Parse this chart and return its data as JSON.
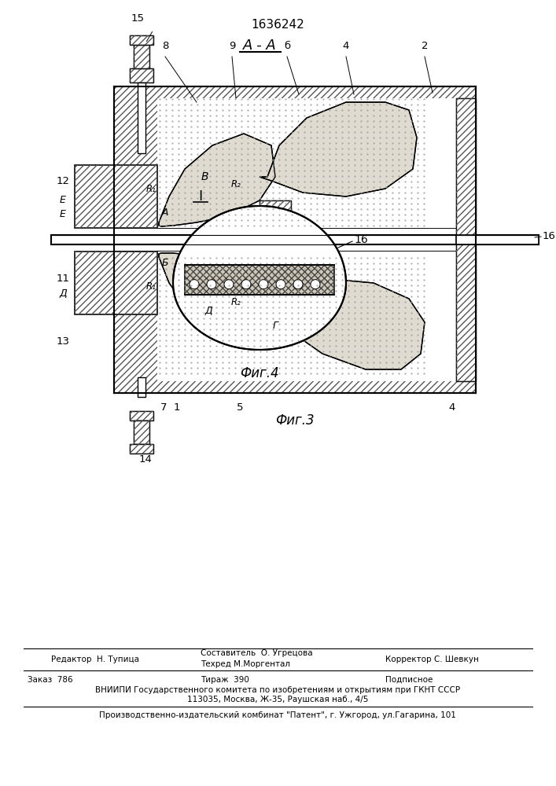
{
  "patent_number": "1636242",
  "fig3_label": "Фиг.3",
  "fig4_label": "Фиг.4",
  "section_label": "А - А",
  "footer_line1_left": "Редактор  Н. Тупица",
  "footer_line1_center1": "Составитель  О. Угрецова",
  "footer_line1_center2": "Техред М.Моргентал",
  "footer_line1_right": "Корректор С. Шевкун",
  "footer_line2_left": "Заказ  786",
  "footer_line2_center": "Тираж  390",
  "footer_line2_right": "Подписное",
  "footer_line3": "ВНИИПИ Государственного комитета по изобретениям и открытиям при ГКНТ СССР",
  "footer_line4": "113035, Москва, Ж-35, Раушская наб., 4/5",
  "footer_line5": "Производственно-издательский комбинат \"Патент\", г. Ужгород, ул.Гагарина, 101",
  "bg_color": "#ffffff",
  "hatch_color": "#333333"
}
